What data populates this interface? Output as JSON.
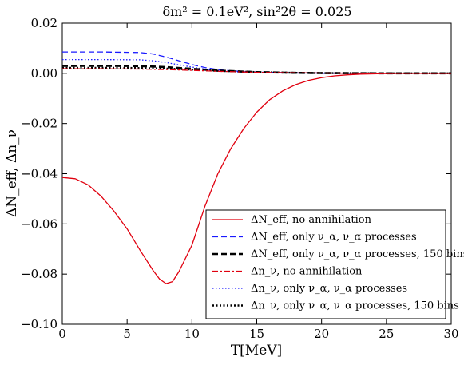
{
  "chart_data": {
    "type": "line",
    "title": "δm² = 0.1eV², sin²2θ = 0.025",
    "xlabel": "T[MeV]",
    "ylabel": "ΔN_eff, Δn_ν",
    "xlim": [
      0,
      30
    ],
    "ylim": [
      -0.1,
      0.02
    ],
    "xticks": [
      0,
      5,
      10,
      15,
      20,
      25,
      30
    ],
    "yticks": [
      -0.1,
      -0.08,
      -0.06,
      -0.04,
      -0.02,
      0.0,
      0.02
    ],
    "xtick_labels": [
      "0",
      "5",
      "10",
      "15",
      "20",
      "25",
      "30"
    ],
    "ytick_labels": [
      "−0.10",
      "−0.08",
      "−0.06",
      "−0.04",
      "−0.02",
      "0.00",
      "0.02"
    ],
    "grid": false,
    "legend_position": "lower-right",
    "series": [
      {
        "name": "ΔN_eff, no annihilation",
        "color": "#e0000f",
        "style": "solid",
        "x": [
          0,
          1,
          2,
          3,
          4,
          5,
          6,
          7,
          7.5,
          8,
          8.5,
          9,
          10,
          11,
          12,
          13,
          14,
          15,
          16,
          17,
          18,
          19,
          20,
          21,
          22,
          23,
          24,
          25,
          26,
          27,
          28,
          29,
          30
        ],
        "y": [
          -0.0415,
          -0.042,
          -0.0445,
          -0.049,
          -0.055,
          -0.062,
          -0.0705,
          -0.0785,
          -0.082,
          -0.0838,
          -0.083,
          -0.079,
          -0.0685,
          -0.053,
          -0.04,
          -0.03,
          -0.022,
          -0.0155,
          -0.0105,
          -0.007,
          -0.0045,
          -0.0028,
          -0.0017,
          -0.001,
          -0.0006,
          -0.0003,
          -0.0002,
          -0.0001,
          0,
          0,
          0,
          0,
          0
        ]
      },
      {
        "name": "ΔN_eff, only ν_α, ν_α processes",
        "color": "#1a1aff",
        "style": "dashed",
        "x": [
          0,
          3,
          6,
          7,
          8,
          9,
          10,
          11,
          12,
          13,
          15,
          18,
          20,
          25,
          30
        ],
        "y": [
          0.0085,
          0.0085,
          0.0083,
          0.0077,
          0.0065,
          0.005,
          0.0035,
          0.0023,
          0.0015,
          0.001,
          0.0005,
          0.0002,
          0.0001,
          0,
          0
        ]
      },
      {
        "name": "ΔN_eff, only ν_α, ν_α processes, 150 bins",
        "color": "#000000",
        "style": "thick-dashed",
        "x": [
          0,
          3,
          6,
          8,
          10,
          12,
          15,
          18,
          20,
          25,
          30
        ],
        "y": [
          0.003,
          0.003,
          0.0029,
          0.0025,
          0.0018,
          0.0011,
          0.0005,
          0.0002,
          0.0001,
          0,
          0
        ]
      },
      {
        "name": "Δn_ν, no annihilation",
        "color": "#e0000f",
        "style": "dashdot",
        "x": [
          0,
          3,
          6,
          8,
          10,
          12,
          15,
          18,
          20,
          25,
          30
        ],
        "y": [
          0.0018,
          0.0018,
          0.0017,
          0.0015,
          0.0012,
          0.0008,
          0.0004,
          0.0002,
          0.0001,
          0,
          0
        ]
      },
      {
        "name": "Δn_ν, only ν_α, ν_α processes",
        "color": "#1a1aff",
        "style": "dotted",
        "x": [
          0,
          3,
          6,
          7,
          8,
          9,
          10,
          11,
          12,
          13,
          15,
          18,
          20,
          25,
          30
        ],
        "y": [
          0.0055,
          0.0055,
          0.0054,
          0.005,
          0.0043,
          0.0034,
          0.0025,
          0.0017,
          0.0011,
          0.0007,
          0.0003,
          0.0001,
          0,
          0,
          0
        ]
      },
      {
        "name": "Δn_ν, only ν_α, ν_α processes, 150 bins",
        "color": "#000000",
        "style": "thick-dotted",
        "x": [
          0,
          3,
          6,
          8,
          10,
          12,
          15,
          18,
          20,
          25,
          30
        ],
        "y": [
          0.0022,
          0.0022,
          0.0021,
          0.0019,
          0.0015,
          0.001,
          0.0005,
          0.0002,
          0.0001,
          0,
          0
        ]
      }
    ]
  }
}
